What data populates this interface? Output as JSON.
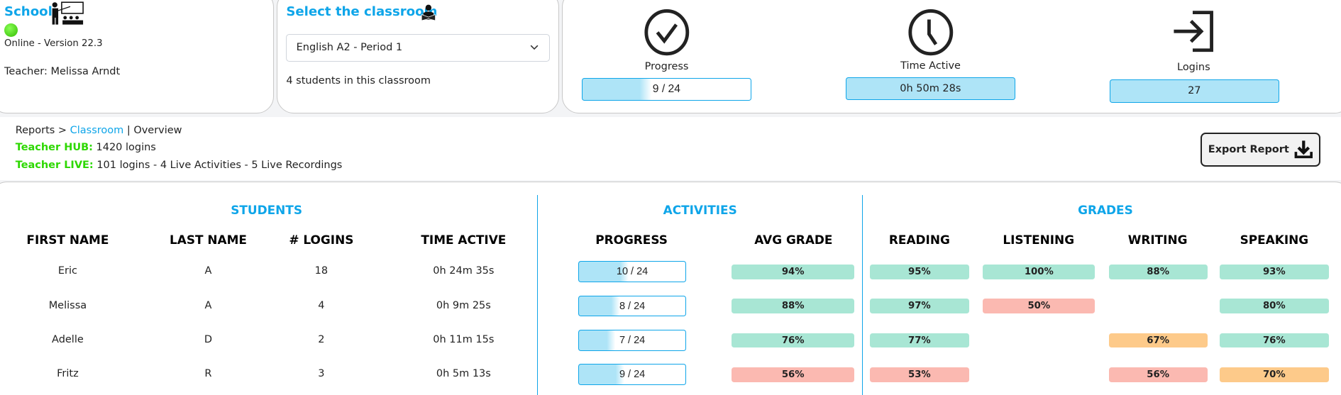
{
  "school": {
    "title": "School",
    "status": "Online - Version 22.3",
    "teacher": "Teacher: Melissa Arndt",
    "status_color": "#44dd00"
  },
  "classroom": {
    "title": "Select the classroom",
    "selected": "English A2 - Period 1",
    "count_text": "4 students in this classroom"
  },
  "stats": {
    "progress": {
      "label": "Progress",
      "value": "9 / 24",
      "fraction": 0.375
    },
    "time_active": {
      "label": "Time Active",
      "value": "0h 50m 28s"
    },
    "logins": {
      "label": "Logins",
      "value": "27"
    }
  },
  "breadcrumb": {
    "root": "Reports >",
    "link": "Classroom",
    "current": "| Overview"
  },
  "hub": {
    "label": "Teacher HUB:",
    "value": "1420 logins"
  },
  "live": {
    "label": "Teacher LIVE:",
    "value": "101 logins - 4 Live Activities - 5 Live Recordings"
  },
  "export_label": "Export Report",
  "sections": {
    "students": "STUDENTS",
    "activities": "ACTIVITIES",
    "grades": "GRADES"
  },
  "columns": [
    "FIRST NAME",
    "LAST NAME",
    "# LOGINS",
    "TIME ACTIVE",
    "PROGRESS",
    "AVG GRADE",
    "READING",
    "LISTENING",
    "WRITING",
    "SPEAKING"
  ],
  "colors": {
    "accent": "#0ea5e9",
    "good": "#a8e6d4",
    "medium": "#fdca8a",
    "poor": "#fbb9b1",
    "progress": "#aee4f7"
  },
  "rows": [
    {
      "first": "Eric",
      "last": "A",
      "logins": "18",
      "time": "0h 24m 35s",
      "progress": "10 / 24",
      "progress_fraction": 0.4167,
      "grades": [
        {
          "v": "94%",
          "s": "good"
        },
        {
          "v": "95%",
          "s": "good"
        },
        {
          "v": "100%",
          "s": "good"
        },
        {
          "v": "88%",
          "s": "good"
        },
        {
          "v": "93%",
          "s": "good"
        }
      ]
    },
    {
      "first": "Melissa",
      "last": "A",
      "logins": "4",
      "time": "0h 9m 25s",
      "progress": "8 / 24",
      "progress_fraction": 0.3333,
      "grades": [
        {
          "v": "88%",
          "s": "good"
        },
        {
          "v": "97%",
          "s": "good"
        },
        {
          "v": "50%",
          "s": "poor"
        },
        null,
        {
          "v": "80%",
          "s": "good"
        }
      ]
    },
    {
      "first": "Adelle",
      "last": "D",
      "logins": "2",
      "time": "0h 11m 15s",
      "progress": "7 / 24",
      "progress_fraction": 0.2917,
      "grades": [
        {
          "v": "76%",
          "s": "good"
        },
        {
          "v": "77%",
          "s": "good"
        },
        null,
        {
          "v": "67%",
          "s": "medium"
        },
        {
          "v": "76%",
          "s": "good"
        }
      ]
    },
    {
      "first": "Fritz",
      "last": "R",
      "logins": "3",
      "time": "0h 5m 13s",
      "progress": "9 / 24",
      "progress_fraction": 0.375,
      "grades": [
        {
          "v": "56%",
          "s": "poor"
        },
        {
          "v": "53%",
          "s": "poor"
        },
        null,
        {
          "v": "56%",
          "s": "poor"
        },
        {
          "v": "70%",
          "s": "medium"
        }
      ]
    }
  ]
}
